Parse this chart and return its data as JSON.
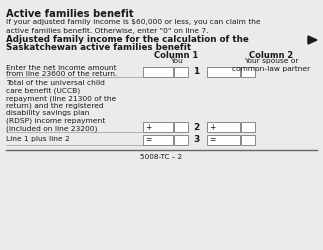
{
  "bg_color": "#ebebeb",
  "title1": "Active families benefit",
  "para1": "If your adjusted family income is $60,000 or less, you can claim the\nactive families benefit. Otherwise, enter \"0\" on line 7.",
  "title2_line1": "Adjusted family income for the calculation of the",
  "title2_line2": "Saskatchewan active families benefit",
  "col1_label": "Column 1",
  "col1_sub": "You",
  "col2_label": "Column 2",
  "col2_sub": "Your spouse or\ncommon-law partner",
  "row1_text_line1": "Enter the net income amount",
  "row1_text_line2": "from line 23600 of the return.",
  "row1_num": "1",
  "row2_text": "Total of the universal child\ncare benefit (UCCB)\nrepayment (line 21300 of the\nreturn) and the registered\ndisability savings plan\n(RDSP) income repayment\n(included on line 23200)",
  "row2_num": "2",
  "row2_sym": "+",
  "row3_text": "Line 1 plus line 2",
  "row3_num": "3",
  "row3_sym": "=",
  "footer": "5008-TC – 2",
  "font_color": "#1a1a1a",
  "box_color": "#ffffff",
  "box_edge": "#777777",
  "line_color": "#999999",
  "arrow_color": "#1a1a1a"
}
